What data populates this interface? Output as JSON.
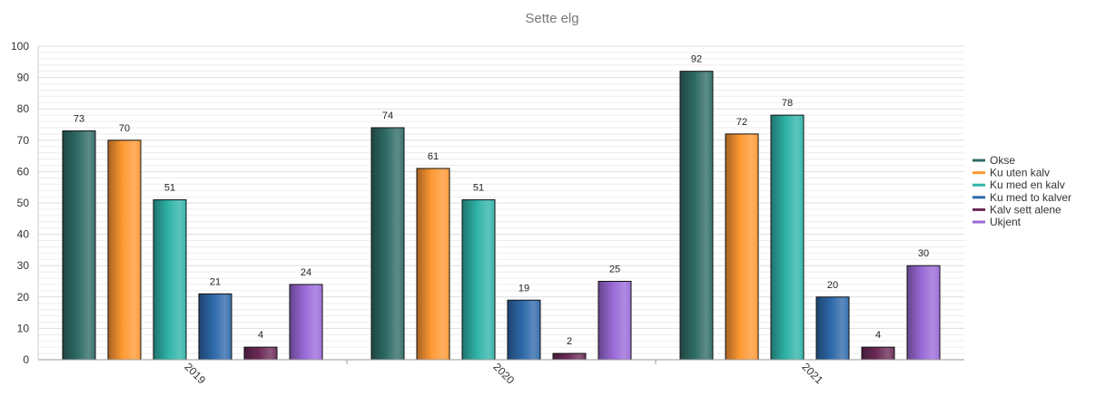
{
  "chart_data": {
    "type": "bar",
    "title": "Sette elg",
    "xlabel": "",
    "ylabel": "",
    "categories": [
      "2019",
      "2020",
      "2021"
    ],
    "ylim": [
      0,
      100
    ],
    "yticks": [
      0,
      10,
      20,
      30,
      40,
      50,
      60,
      70,
      80,
      90,
      100
    ],
    "grid": true,
    "legend_position": "right",
    "series": [
      {
        "name": "Okse",
        "color": "#2f6b66",
        "values": [
          73,
          74,
          92
        ]
      },
      {
        "name": "Ku uten kalv",
        "color": "#ff9933",
        "values": [
          70,
          61,
          72
        ]
      },
      {
        "name": "Ku med en kalv",
        "color": "#2fb3a8",
        "values": [
          51,
          51,
          78
        ]
      },
      {
        "name": "Ku med to kalver",
        "color": "#2e69aa",
        "values": [
          21,
          19,
          20
        ]
      },
      {
        "name": "Kalv sett alene",
        "color": "#6b2a57",
        "values": [
          4,
          2,
          4
        ]
      },
      {
        "name": "Ukjent",
        "color": "#9a6ad8",
        "values": [
          24,
          25,
          30
        ]
      }
    ]
  }
}
